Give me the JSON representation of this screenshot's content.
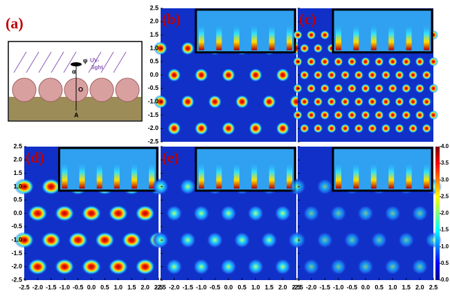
{
  "schematic": {
    "label": "(a)",
    "light": "UV-",
    "light2": "light",
    "phi": "φ",
    "alpha": "α",
    "o": "O",
    "a": "A"
  },
  "panels": [
    {
      "label": "(b)"
    },
    {
      "label": "(c)"
    },
    {
      "label": "(d)"
    },
    {
      "label": "(e)"
    }
  ],
  "axis_ticks": [
    2.5,
    {
      "value": 2,
      "label": "2.0"
    },
    1.5,
    {
      "value": 1,
      "label": "1.0"
    },
    0.5,
    {
      "value": 0,
      "label": "0.0"
    },
    -0.5,
    {
      "value": -1,
      "label": "-1.0"
    },
    -1.5,
    {
      "value": -2,
      "label": "-2.0"
    },
    -2.5
  ],
  "colorbar_ticks": [
    {
      "value": 4,
      "label": "4.0"
    },
    3.5,
    {
      "value": 3,
      "label": "3.0"
    },
    2.5,
    {
      "value": 2,
      "label": "2.0"
    },
    1.5,
    {
      "value": 1,
      "label": "1.0"
    },
    0.5,
    {
      "value": 0,
      "label": "0.0"
    }
  ]
}
